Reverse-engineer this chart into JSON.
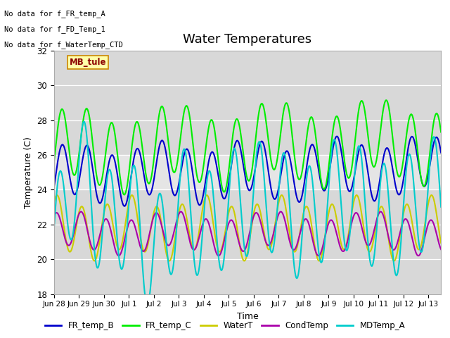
{
  "title": "Water Temperatures",
  "xlabel": "Time",
  "ylabel": "Temperature (C)",
  "ylim": [
    18,
    32
  ],
  "yticks": [
    18,
    20,
    22,
    24,
    26,
    28,
    30,
    32
  ],
  "series": {
    "FR_temp_B": {
      "color": "#0000cc",
      "lw": 1.5
    },
    "FR_temp_C": {
      "color": "#00ee00",
      "lw": 1.5
    },
    "WaterT": {
      "color": "#cccc00",
      "lw": 1.5
    },
    "CondTemp": {
      "color": "#aa00aa",
      "lw": 1.5
    },
    "MDTemp_A": {
      "color": "#00cccc",
      "lw": 1.5
    }
  },
  "legend_labels": [
    "FR_temp_B",
    "FR_temp_C",
    "WaterT",
    "CondTemp",
    "MDTemp_A"
  ],
  "legend_colors": [
    "#0000cc",
    "#00ee00",
    "#cccc00",
    "#aa00aa",
    "#00cccc"
  ],
  "annotations": [
    "No data for f_FR_temp_A",
    "No data for f_FD_Temp_1",
    "No data for f_WaterTemp_CTD"
  ],
  "mb_tule_label": "MB_tule",
  "shade_band": [
    24,
    26
  ],
  "tick_labels": [
    "Jun 28",
    "Jun 29",
    "Jun 30",
    "Jul 1",
    "Jul 2",
    "Jul 3",
    "Jul 4",
    "Jul 5",
    "Jul 6",
    "Jul 7",
    "Jul 8",
    "Jul 9",
    "Jul 10",
    "Jul 11",
    "Jul 12",
    "Jul 13"
  ]
}
